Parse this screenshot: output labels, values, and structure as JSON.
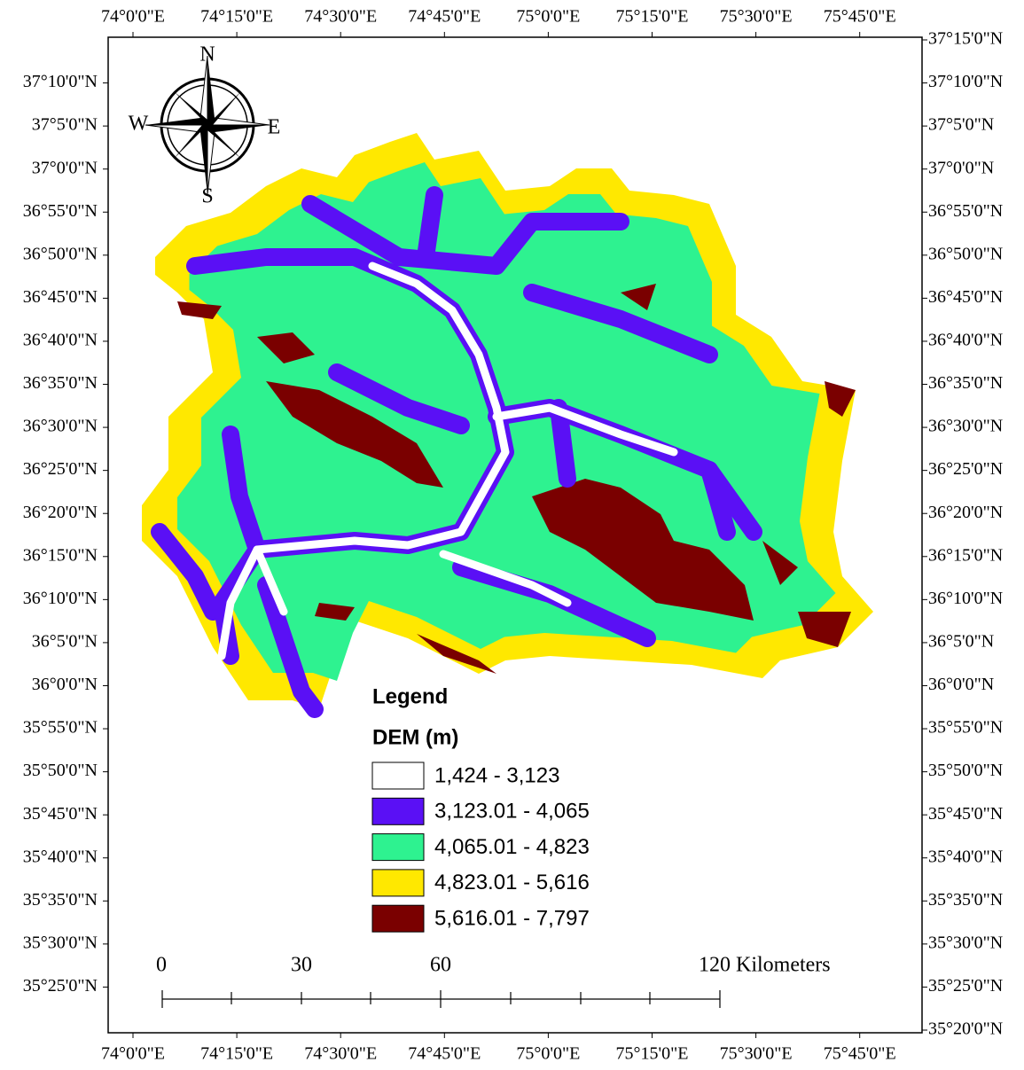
{
  "map": {
    "x_labels": [
      "74°0'0\"E",
      "74°15'0\"E",
      "74°30'0\"E",
      "74°45'0\"E",
      "75°0'0\"E",
      "75°15'0\"E",
      "75°30'0\"E",
      "75°45'0\"E"
    ],
    "y_labels": [
      "37°15'0\"N",
      "37°10'0\"N",
      "37°5'0\"N",
      "37°0'0\"N",
      "36°55'0\"N",
      "36°50'0\"N",
      "36°45'0\"N",
      "36°40'0\"N",
      "36°35'0\"N",
      "36°30'0\"N",
      "36°25'0\"N",
      "36°20'0\"N",
      "36°15'0\"N",
      "36°10'0\"N",
      "36°5'0\"N",
      "36°0'0\"N",
      "35°55'0\"N",
      "35°50'0\"N",
      "35°45'0\"N",
      "35°40'0\"N",
      "35°35'0\"N",
      "35°30'0\"N",
      "35°25'0\"N",
      "35°20'0\"N"
    ],
    "compass": {
      "n": "N",
      "s": "S",
      "e": "E",
      "w": "W"
    },
    "legend": {
      "title": "Legend",
      "subtitle": "DEM (m)",
      "items": [
        {
          "label": "1,424 - 3,123",
          "color": "#ffffff"
        },
        {
          "label": "3,123.01 - 4,065",
          "color": "#5a10f5"
        },
        {
          "label": "4,065.01 - 4,823",
          "color": "#2ef290"
        },
        {
          "label": "4,823.01 - 5,616",
          "color": "#ffe800"
        },
        {
          "label": "5,616.01 - 7,797",
          "color": "#7a0000"
        }
      ]
    },
    "scale_bar": {
      "labels": [
        "0",
        "30",
        "60",
        "120 Kilometers"
      ]
    }
  }
}
